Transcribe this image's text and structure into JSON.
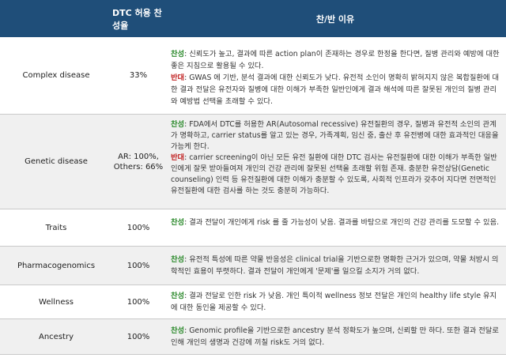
{
  "header": {
    "col1": "",
    "col2": "DTC 허용 찬성율",
    "col3": "찬/반 이유"
  },
  "rows": [
    {
      "name": "Complex disease",
      "rate": "33%",
      "pro_label": "찬성",
      "pro_text": ": 신뢰도가 높고, 결과에 따른 action plan이 존재하는 경우로 한정을 한다면, 질병 관리와 예방에 대한 좋은 지침으로 활용될 수 있다.",
      "con_label": "반대",
      "con_text": ": GWAS 에 기반, 분석 결과에 대한 신뢰도가 낮다. 유전적 소인이 명확히 밝혀지지 않은 복합질환에 대한 결과 전달은 유전자와 질병에 대한 이해가 부족한 일반인에게 결과 해석에 따른 잘못된 개인의 질병 관리와 예방법 선택을 초래할 수 있다."
    },
    {
      "name": "Genetic disease",
      "rate": "AR: 100%, Others: 66%",
      "pro_label": "찬성",
      "pro_text": ": FDA에서 DTC를 허용한 AR(Autosomal recessive) 유전질환의 경우, 질병과 유전적 소인의 관계가 명확하고, carrier status를 알고 있는 경우, 가족계획, 임신 중, 출산 후 유전병에 대한 효과적인 대응을 가능케 한다.",
      "con_label": "반대",
      "con_text": ": carrier screening이 아닌 모든 유전 질환에 대한 DTC 검사는 유전질환에 대한 이해가 부족한 일반인에게 잘못 받아들여져 개인의 건강 관리에 잘못된 선택을 초래할 위험 존재. 충분한 유전상담(Genetic counseling) 인력 등 유전질환에 대한 이해가 충분할 수 있도록, 사회적 인프라가 갖추어 지다면 전면적인 유전질환에 대한 검사를 하는 것도 충분히 가능하다."
    },
    {
      "name": "Traits",
      "rate": "100%",
      "pro_label": "찬성",
      "pro_text": ": 결과 전달이 개인에게 risk 를 줄 가능성이 낮음. 결과를 바탕으로 개인의 건강 관리를 도모할 수 있음."
    },
    {
      "name": "Pharmacogenomics",
      "rate": "100%",
      "pro_label": "찬성",
      "pro_text": ": 유전적 특성에 따른 약물 반응성은 clinical trial을 기반으로한 명확한 근거가 있으며, 약물 처방시 의학적인 효용이 뚜렷하다. 결과 전달이 개인에게 '문제'를 일으킬 소지가 거의 없다."
    },
    {
      "name": "Wellness",
      "rate": "100%",
      "pro_label": "찬성",
      "pro_text": ": 결과 전달로 인한 risk 가 낮음. 개인 특이적 wellness 정보 전달은 개인의 healthy life style 유지에 대한 동인을 제공할 수 있다."
    },
    {
      "name": "Ancestry",
      "rate": "100%",
      "pro_label": "찬성",
      "pro_text": ": Genomic profile을 기반으로한 ancestry 분석 정확도가 높으며, 신뢰할 만 하다. 또한 결과 전달로 인해 개인의 생명과 건강에 끼칠 risk도 거의 없다."
    }
  ],
  "colors": {
    "header_bg": "#1f4e79",
    "pro": "#2e8b2e",
    "con": "#c22727",
    "shade": "#f0f0f0"
  }
}
